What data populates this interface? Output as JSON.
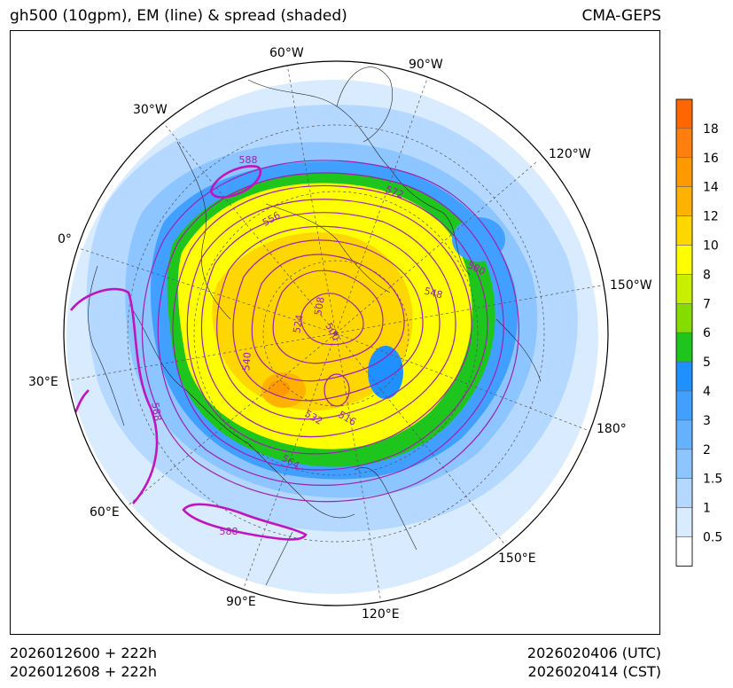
{
  "header": {
    "title": "gh500 (10gpm), EM (line) & spread (shaded)",
    "model": "CMA-GEPS"
  },
  "footer": {
    "init_utc": "2026012600 + 222h",
    "init_cst": "2026012608 + 222h",
    "valid_utc": "2026020406 (UTC)",
    "valid_cst": "2026020414 (CST)"
  },
  "map": {
    "projection": "north polar stereographic",
    "longitude_labels": [
      "60°W",
      "90°W",
      "30°W",
      "120°W",
      "0°",
      "150°W",
      "30°E",
      "180°",
      "60°E",
      "150°E",
      "90°E",
      "120°E"
    ],
    "contour_labels": [
      "588",
      "572",
      "556",
      "580",
      "548",
      "524",
      "508",
      "500",
      "540",
      "532",
      "516",
      "588",
      "564",
      "588"
    ]
  },
  "colorbar": {
    "levels": [
      "18",
      "16",
      "14",
      "12",
      "10",
      "8",
      "7",
      "6",
      "5",
      "4",
      "3",
      "2",
      "1.5",
      "1",
      "0.5"
    ],
    "colors": [
      "#ff6600",
      "#ff7f0e",
      "#ff9900",
      "#ffb300",
      "#ffd700",
      "#ffff00",
      "#c8ee00",
      "#85dd00",
      "#1dc51d",
      "#1e90ff",
      "#41a0ff",
      "#64b2ff",
      "#8cc5ff",
      "#b4d8ff",
      "#d9ecff",
      "#ffffff"
    ]
  }
}
